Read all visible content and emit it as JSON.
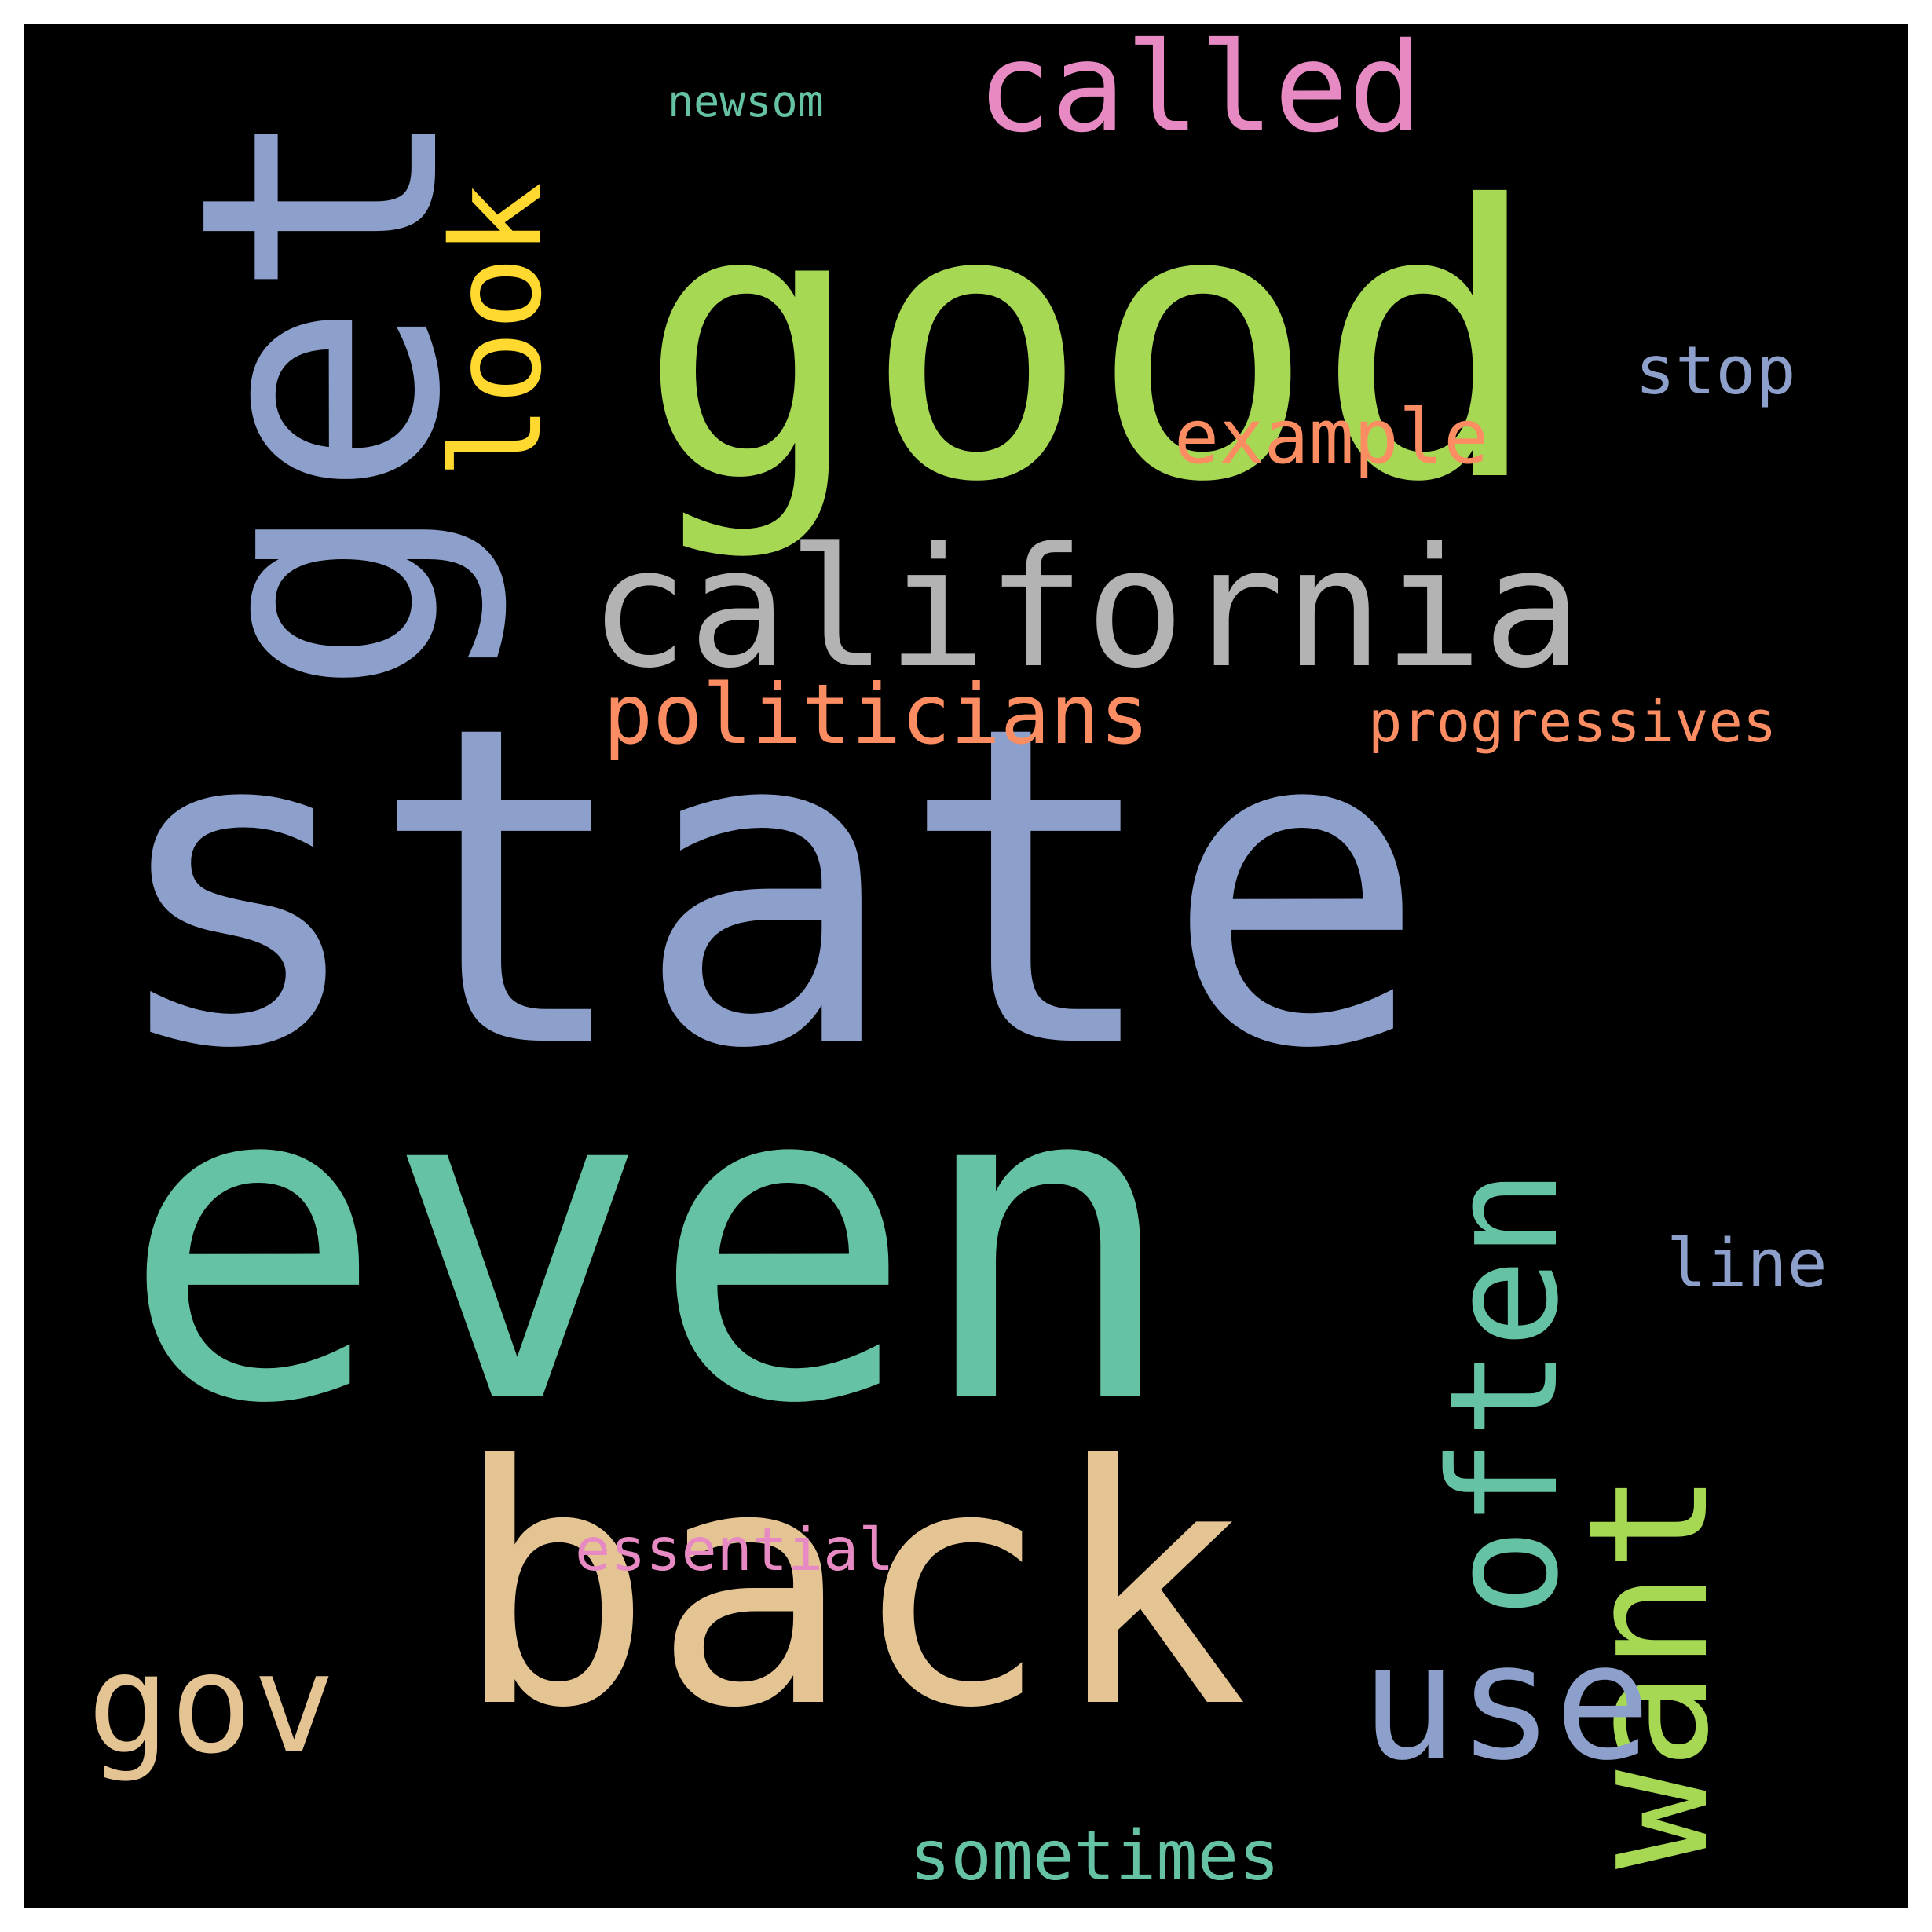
{
  "canvas": {
    "background": "#000000",
    "frame": "#ffffff"
  },
  "words": [
    {
      "text": "state",
      "color": "#8DA0CB"
    },
    {
      "text": "even",
      "color": "#66C2A5"
    },
    {
      "text": "good",
      "color": "#A6D854"
    },
    {
      "text": "back",
      "color": "#E5C494"
    },
    {
      "text": "get",
      "color": "#8DA0CB"
    },
    {
      "text": "california",
      "color": "#B3B3B3"
    },
    {
      "text": "want",
      "color": "#A6D854"
    },
    {
      "text": "often",
      "color": "#66C2A5"
    },
    {
      "text": "use",
      "color": "#8DA0CB"
    },
    {
      "text": "called",
      "color": "#E78AC3"
    },
    {
      "text": "look",
      "color": "#FFD92F"
    },
    {
      "text": "gov",
      "color": "#E5C494"
    },
    {
      "text": "politicians",
      "color": "#FC8D62"
    },
    {
      "text": "example",
      "color": "#FC8D62"
    },
    {
      "text": "progressives",
      "color": "#FC8D62"
    },
    {
      "text": "stop",
      "color": "#8DA0CB"
    },
    {
      "text": "line",
      "color": "#8DA0CB"
    },
    {
      "text": "sometimes",
      "color": "#66C2A5"
    },
    {
      "text": "essential",
      "color": "#E78AC3"
    },
    {
      "text": "newsom",
      "color": "#66C2A5"
    }
  ]
}
